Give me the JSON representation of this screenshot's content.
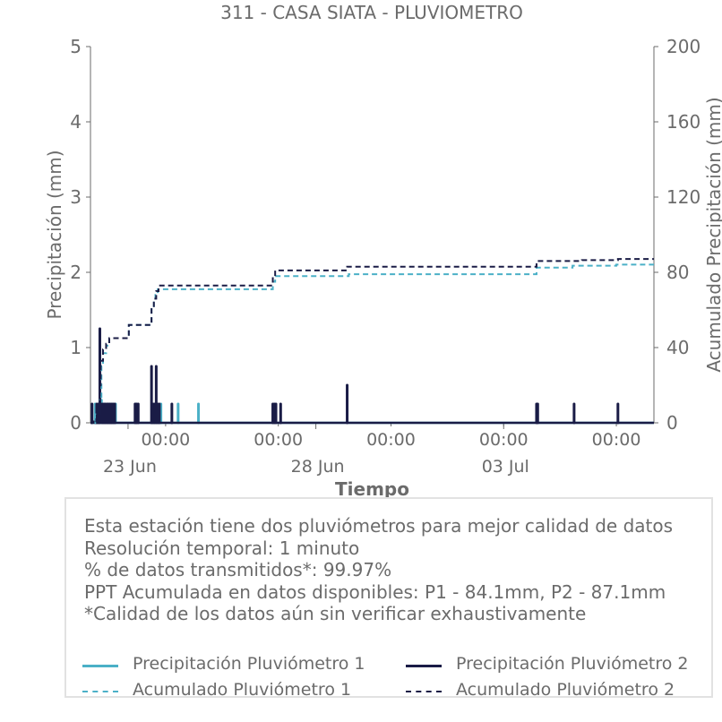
{
  "title": "311 - CASA SIATA - PLUVIOMETRO",
  "colors": {
    "p1": "#4bb0c7",
    "p2": "#1a1c46",
    "text": "#6b6b6b",
    "axis": "#6b6b6b"
  },
  "chart_data": {
    "type": "line",
    "xlabel": "Tiempo",
    "ylabel_left": "Precipitación (mm)",
    "ylabel_right": "Acumulado Precipitación (mm)",
    "ylim_left": [
      0,
      5
    ],
    "ylim_right": [
      0,
      200
    ],
    "yticks_left": [
      "0",
      "1",
      "2",
      "3",
      "4",
      "5"
    ],
    "yticks_right": [
      "0",
      "40",
      "80",
      "120",
      "160",
      "200"
    ],
    "xlim": [
      "2025-06-22T00:00",
      "2025-07-07T00:00"
    ],
    "xticks_minor": [
      "00:00",
      "00:00",
      "00:00",
      "00:00",
      "00:00"
    ],
    "xticks_minor_dates": [
      "2025-06-24T00:00",
      "2025-06-27T00:00",
      "2025-06-30T00:00",
      "2025-07-03T00:00",
      "2025-07-06T00:00"
    ],
    "xticks_major": [
      "23 Jun",
      "28 Jun",
      "03 Jul"
    ],
    "xticks_major_dates": [
      "2025-06-23T00:00",
      "2025-06-28T00:00",
      "2025-07-03T00:00"
    ],
    "grid": false,
    "series": [
      {
        "name": "Precipitación Pluviómetro 1",
        "style": "solid",
        "axis": "left",
        "events": [
          [
            "2025-06-22T03:00",
            0.25
          ],
          [
            "2025-06-22T05:30",
            0.25
          ],
          [
            "2025-06-22T07:00",
            0.3
          ],
          [
            "2025-06-22T09:00",
            0.25
          ],
          [
            "2025-06-22T11:00",
            0.25
          ],
          [
            "2025-06-22T12:30",
            0.25
          ],
          [
            "2025-06-22T14:00",
            0.25
          ],
          [
            "2025-06-22T16:00",
            0.25
          ],
          [
            "2025-06-23T05:00",
            0.25
          ],
          [
            "2025-06-23T21:00",
            0.25
          ],
          [
            "2025-06-24T08:00",
            0.25
          ],
          [
            "2025-06-24T21:00",
            0.25
          ]
        ]
      },
      {
        "name": "Precipitación Pluviómetro 2",
        "style": "solid",
        "axis": "left",
        "events": [
          [
            "2025-06-22T01:00",
            0.25
          ],
          [
            "2025-06-22T04:00",
            0.25
          ],
          [
            "2025-06-22T05:00",
            0.25
          ],
          [
            "2025-06-22T06:00",
            1.25
          ],
          [
            "2025-06-22T07:30",
            0.25
          ],
          [
            "2025-06-22T08:30",
            0.25
          ],
          [
            "2025-06-22T09:30",
            0.25
          ],
          [
            "2025-06-22T10:30",
            0.25
          ],
          [
            "2025-06-22T11:30",
            0.25
          ],
          [
            "2025-06-22T12:30",
            0.25
          ],
          [
            "2025-06-22T13:30",
            0.25
          ],
          [
            "2025-06-22T14:30",
            0.25
          ],
          [
            "2025-06-22T15:30",
            0.25
          ],
          [
            "2025-06-23T04:30",
            0.25
          ],
          [
            "2025-06-23T05:30",
            0.25
          ],
          [
            "2025-06-23T06:30",
            0.25
          ],
          [
            "2025-06-23T15:00",
            0.75
          ],
          [
            "2025-06-23T16:00",
            0.25
          ],
          [
            "2025-06-23T17:00",
            0.25
          ],
          [
            "2025-06-23T18:00",
            0.75
          ],
          [
            "2025-06-23T19:00",
            0.25
          ],
          [
            "2025-06-23T20:00",
            0.25
          ],
          [
            "2025-06-24T04:00",
            0.25
          ],
          [
            "2025-06-26T20:30",
            0.25
          ],
          [
            "2025-06-26T21:30",
            0.25
          ],
          [
            "2025-06-26T22:30",
            0.25
          ],
          [
            "2025-06-27T01:30",
            0.25
          ],
          [
            "2025-06-28T20:00",
            0.5
          ],
          [
            "2025-07-03T21:00",
            0.25
          ],
          [
            "2025-07-03T21:45",
            0.25
          ],
          [
            "2025-07-04T21:00",
            0.25
          ],
          [
            "2025-07-06T01:00",
            0.25
          ]
        ]
      },
      {
        "name": "Acumulado Pluviómetro 1",
        "style": "dashed",
        "axis": "right",
        "steps": [
          [
            "2025-06-22T00:00",
            0
          ],
          [
            "2025-06-22T03:00",
            5
          ],
          [
            "2025-06-22T06:00",
            12
          ],
          [
            "2025-06-22T07:00",
            30
          ],
          [
            "2025-06-22T08:00",
            37
          ],
          [
            "2025-06-22T10:00",
            41
          ],
          [
            "2025-06-22T12:00",
            45
          ],
          [
            "2025-06-23T00:00",
            45
          ],
          [
            "2025-06-23T00:30",
            52
          ],
          [
            "2025-06-23T15:00",
            61
          ],
          [
            "2025-06-23T16:30",
            64
          ],
          [
            "2025-06-23T17:30",
            68
          ],
          [
            "2025-06-23T19:00",
            71
          ],
          [
            "2025-06-24T06:00",
            71
          ],
          [
            "2025-06-26T20:30",
            75
          ],
          [
            "2025-06-26T22:00",
            78
          ],
          [
            "2025-06-28T21:00",
            79
          ],
          [
            "2025-07-03T21:00",
            82.5
          ],
          [
            "2025-07-04T20:00",
            83.5
          ],
          [
            "2025-07-06T00:00",
            84.1
          ],
          [
            "2025-07-07T00:00",
            84.1
          ]
        ]
      },
      {
        "name": "Acumulado Pluviómetro 2",
        "style": "dashed",
        "axis": "right",
        "steps": [
          [
            "2025-06-22T00:00",
            0
          ],
          [
            "2025-06-22T02:00",
            2
          ],
          [
            "2025-06-22T04:00",
            5
          ],
          [
            "2025-06-22T06:00",
            20
          ],
          [
            "2025-06-22T06:30",
            33
          ],
          [
            "2025-06-22T08:00",
            39
          ],
          [
            "2025-06-22T10:00",
            42
          ],
          [
            "2025-06-22T12:00",
            45
          ],
          [
            "2025-06-23T00:00",
            45
          ],
          [
            "2025-06-23T00:30",
            52
          ],
          [
            "2025-06-23T15:00",
            62
          ],
          [
            "2025-06-23T16:30",
            66
          ],
          [
            "2025-06-23T18:00",
            70
          ],
          [
            "2025-06-23T19:30",
            73
          ],
          [
            "2025-06-26T20:30",
            78
          ],
          [
            "2025-06-26T22:00",
            81
          ],
          [
            "2025-06-28T20:00",
            83
          ],
          [
            "2025-07-03T21:00",
            86
          ],
          [
            "2025-07-05T02:00",
            86.5
          ],
          [
            "2025-07-06T01:00",
            87.1
          ],
          [
            "2025-07-07T00:00",
            87.1
          ]
        ]
      }
    ]
  },
  "info": {
    "lines": [
      "Esta estación tiene dos pluviómetros para mejor calidad de datos",
      "Resolución temporal: 1 minuto",
      "% de datos transmitidos*: 99.97%",
      "PPT Acumulada en datos disponibles: P1 - 84.1mm, P2 - 87.1mm",
      "*Calidad de los datos aún sin verificar exhaustivamente"
    ],
    "legend": [
      {
        "label": "Precipitación Pluviómetro 1",
        "color": "#4bb0c7",
        "style": "solid"
      },
      {
        "label": "Precipitación Pluviómetro 2",
        "color": "#1a1c46",
        "style": "solid"
      },
      {
        "label": "Acumulado Pluviómetro 1",
        "color": "#4bb0c7",
        "style": "dashed"
      },
      {
        "label": "Acumulado Pluviómetro 2",
        "color": "#1a1c46",
        "style": "dashed"
      }
    ]
  }
}
